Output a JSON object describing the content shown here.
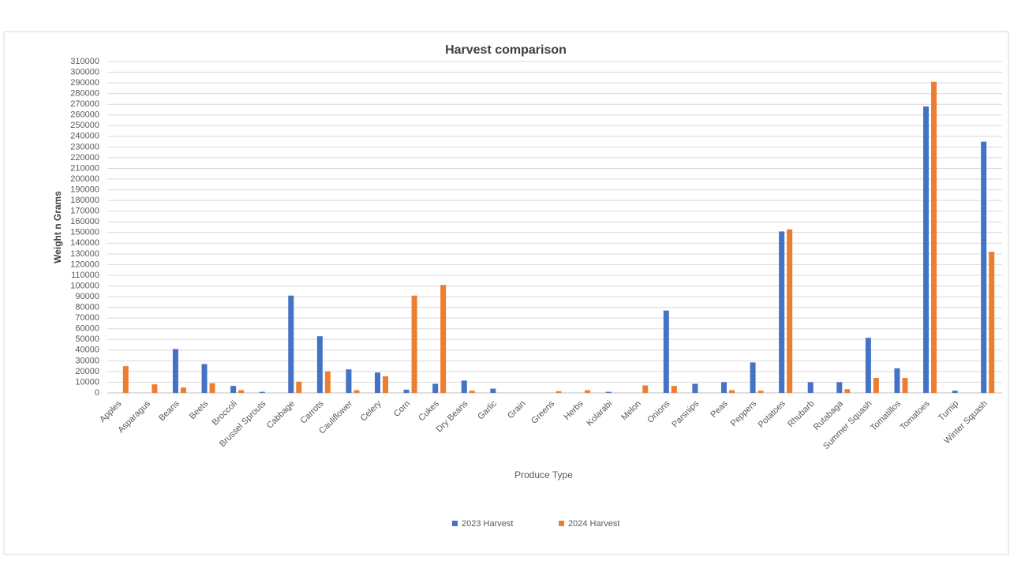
{
  "chart_data": {
    "type": "bar",
    "title": "Harvest comparison",
    "x_label": "Produce Type",
    "y_label": "Weight n Grams",
    "categories": [
      "Apples",
      "Asparagus",
      "Beans",
      "Beets",
      "Broccoli",
      "Brussel Sprouts",
      "Cabbage",
      "Carrots",
      "Cauliflower",
      "Celery",
      "Corn",
      "Cukes",
      "Dry Beans",
      "Garlic",
      "Grain",
      "Greens",
      "Herbs",
      "Kolarabi",
      "Melon",
      "Onions",
      "Parsnips",
      "Peas",
      "Peppers",
      "Potatoes",
      "Rhubarb",
      "Rutabaga",
      "Summer Squash",
      "Tomatillos",
      "Tomatoes",
      "Turnip",
      "Winter Squash"
    ],
    "series": [
      {
        "name": "2023 Harvest",
        "color": "#4472c4",
        "values": [
          0,
          0,
          41000,
          27000,
          6500,
          1000,
          91000,
          53000,
          22000,
          19000,
          3000,
          8500,
          11500,
          4000,
          0,
          0,
          0,
          1000,
          0,
          77000,
          8500,
          10000,
          28500,
          151000,
          10000,
          10000,
          51500,
          23000,
          268000,
          2000,
          235000
        ]
      },
      {
        "name": "2024 Harvest",
        "color": "#ed7d31",
        "values": [
          25000,
          8000,
          5000,
          9000,
          2500,
          0,
          10500,
          20000,
          2500,
          15500,
          91000,
          101000,
          2000,
          0,
          0,
          1500,
          2500,
          0,
          7000,
          6500,
          0,
          2500,
          2000,
          153000,
          0,
          3500,
          14000,
          14000,
          291000,
          0,
          132000
        ]
      }
    ],
    "ylim": [
      0,
      310000
    ],
    "yticks": [
      0,
      10000,
      20000,
      30000,
      40000,
      50000,
      60000,
      70000,
      80000,
      90000,
      100000,
      110000,
      120000,
      130000,
      140000,
      150000,
      160000,
      170000,
      180000,
      190000,
      200000,
      210000,
      220000,
      230000,
      240000,
      250000,
      260000,
      270000,
      280000,
      290000,
      300000,
      310000
    ],
    "grid": true,
    "legend": "bottom"
  }
}
